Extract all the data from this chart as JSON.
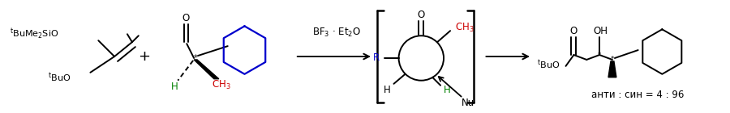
{
  "bg_color": "#ffffff",
  "fig_width": 9.0,
  "fig_height": 1.4,
  "dpi": 100,
  "color_black": "#000000",
  "color_red": "#cc0000",
  "color_green": "#008000",
  "color_blue": "#0000cc",
  "mol1_label1": "$\\mathregular{^{t}}$BuMe$\\mathregular{_2}$SiO",
  "mol1_label2": "$\\mathregular{^{t}}$BuO",
  "plus": "+",
  "mol2_O": "O",
  "mol2_H": "H",
  "mol2_CH3": "CH$\\mathregular{_3}$",
  "reagent": "BF$\\mathregular{_3}$ · Et$\\mathregular{_2}$O",
  "bracket_O": "O",
  "bracket_CH3": "CH$\\mathregular{_3}$",
  "bracket_R": "R",
  "bracket_H_black": "H",
  "bracket_H_green": "H",
  "bracket_Nu": "Nu",
  "prod_O": "O",
  "prod_OH": "OH",
  "prod_tBuO": "$\\mathregular{^{t}}$BuO",
  "ratio": "анти : син = 4 : 96"
}
